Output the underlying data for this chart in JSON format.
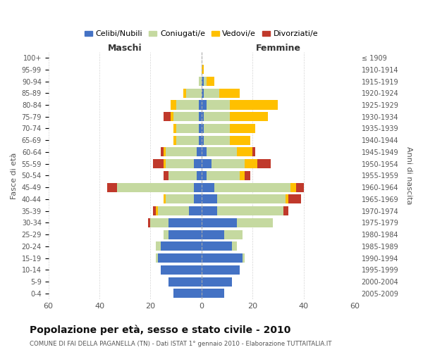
{
  "age_groups": [
    "0-4",
    "5-9",
    "10-14",
    "15-19",
    "20-24",
    "25-29",
    "30-34",
    "35-39",
    "40-44",
    "45-49",
    "50-54",
    "55-59",
    "60-64",
    "65-69",
    "70-74",
    "75-79",
    "80-84",
    "85-89",
    "90-94",
    "95-99",
    "100+"
  ],
  "birth_years": [
    "2005-2009",
    "2000-2004",
    "1995-1999",
    "1990-1994",
    "1985-1989",
    "1980-1984",
    "1975-1979",
    "1970-1974",
    "1965-1969",
    "1960-1964",
    "1955-1959",
    "1950-1954",
    "1945-1949",
    "1940-1944",
    "1935-1939",
    "1930-1934",
    "1925-1929",
    "1920-1924",
    "1915-1919",
    "1910-1914",
    "≤ 1909"
  ],
  "maschi": {
    "celibi": [
      11,
      13,
      16,
      17,
      16,
      13,
      13,
      5,
      3,
      3,
      2,
      3,
      2,
      1,
      1,
      1,
      1,
      0,
      0,
      0,
      0
    ],
    "coniugati": [
      0,
      0,
      0,
      1,
      2,
      2,
      7,
      12,
      11,
      30,
      11,
      11,
      12,
      9,
      9,
      10,
      9,
      6,
      1,
      0,
      0
    ],
    "vedovi": [
      0,
      0,
      0,
      0,
      0,
      0,
      0,
      1,
      1,
      0,
      0,
      1,
      1,
      1,
      1,
      1,
      2,
      1,
      0,
      0,
      0
    ],
    "divorziati": [
      0,
      0,
      0,
      0,
      0,
      0,
      1,
      1,
      0,
      4,
      2,
      4,
      1,
      0,
      0,
      3,
      0,
      0,
      0,
      0,
      0
    ]
  },
  "femmine": {
    "nubili": [
      9,
      12,
      15,
      16,
      12,
      9,
      14,
      6,
      6,
      5,
      2,
      4,
      2,
      1,
      1,
      1,
      2,
      1,
      1,
      0,
      0
    ],
    "coniugate": [
      0,
      0,
      0,
      1,
      2,
      7,
      14,
      26,
      27,
      30,
      13,
      13,
      12,
      10,
      10,
      10,
      9,
      6,
      1,
      0,
      0
    ],
    "vedove": [
      0,
      0,
      0,
      0,
      0,
      0,
      0,
      0,
      1,
      2,
      2,
      5,
      6,
      8,
      10,
      15,
      19,
      8,
      3,
      1,
      0
    ],
    "divorziate": [
      0,
      0,
      0,
      0,
      0,
      0,
      0,
      2,
      5,
      3,
      2,
      5,
      1,
      0,
      0,
      0,
      0,
      0,
      0,
      0,
      0
    ]
  },
  "colors": {
    "celibi": "#4472c4",
    "coniugati": "#c5d9a0",
    "vedovi": "#ffc000",
    "divorziati": "#c0392b"
  },
  "xlim": 60,
  "title": "Popolazione per età, sesso e stato civile - 2010",
  "subtitle": "COMUNE DI FAI DELLA PAGANELLA (TN) - Dati ISTAT 1° gennaio 2010 - Elaborazione TUTTAITALIA.IT",
  "ylabel_left": "Fasce di età",
  "ylabel_right": "Anni di nascita",
  "xlabel_left": "Maschi",
  "xlabel_right": "Femmine",
  "legend_labels": [
    "Celibi/Nubili",
    "Coniugati/e",
    "Vedovi/e",
    "Divorziati/e"
  ],
  "background_color": "#ffffff",
  "grid_color": "#cccccc"
}
